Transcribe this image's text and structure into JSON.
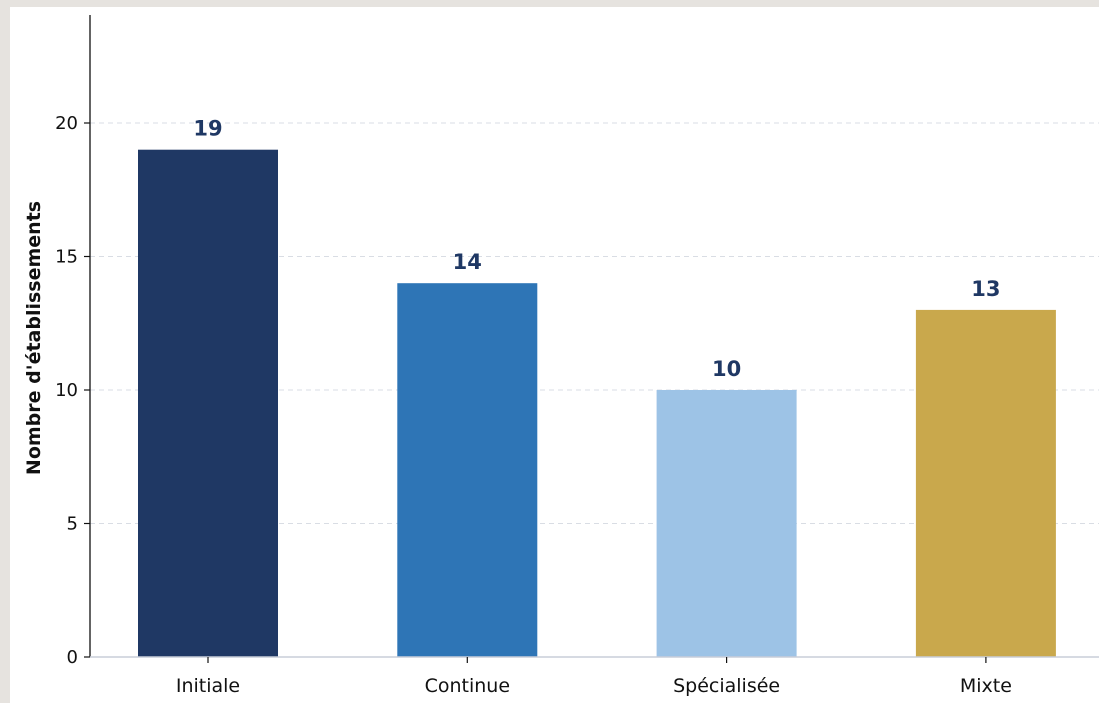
{
  "chart_data": {
    "type": "bar",
    "title": "",
    "xlabel": "",
    "ylabel": "Nombre d'établissements",
    "categories": [
      "Initiale",
      "Continue",
      "Spécialisée",
      "Mixte"
    ],
    "values": [
      19,
      14,
      10,
      13
    ],
    "data_labels": [
      "19",
      "14",
      "10",
      "13"
    ],
    "ylim": [
      0,
      24
    ],
    "yticks": [
      0,
      5,
      10,
      15,
      20
    ],
    "ytick_labels": [
      "0",
      "5",
      "10",
      "15",
      "20"
    ],
    "grid": "horizontal dashed",
    "legend": "none",
    "colors": [
      "#1f3864",
      "#2e75b6",
      "#9dc3e6",
      "#c9a84c"
    ]
  }
}
